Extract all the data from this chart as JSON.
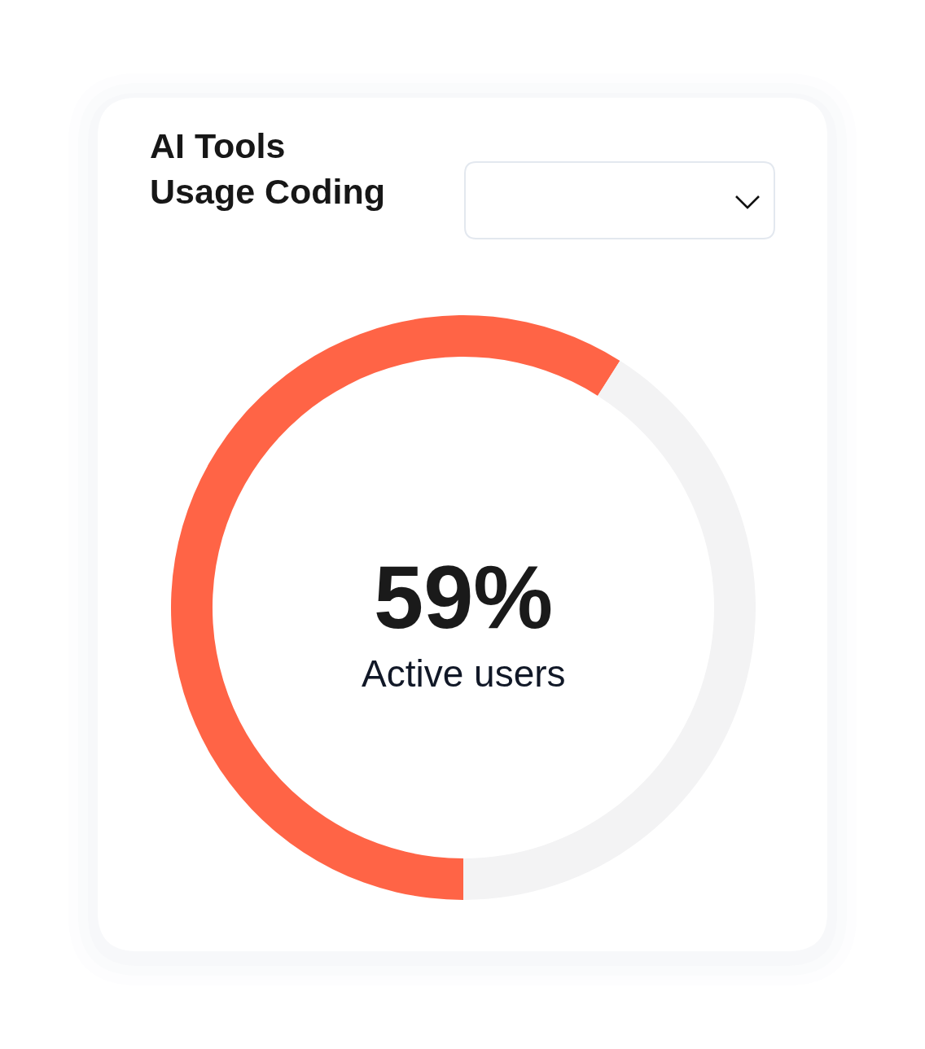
{
  "chart_data": {
    "type": "donut",
    "title": "AI Tools Usage Coding",
    "categories": [
      "Active users",
      null
    ],
    "values": [
      59,
      41
    ],
    "colors": [
      "#ff6446",
      "#f3f3f4"
    ],
    "value_labels": [
      "59%",
      null
    ]
  }
}
